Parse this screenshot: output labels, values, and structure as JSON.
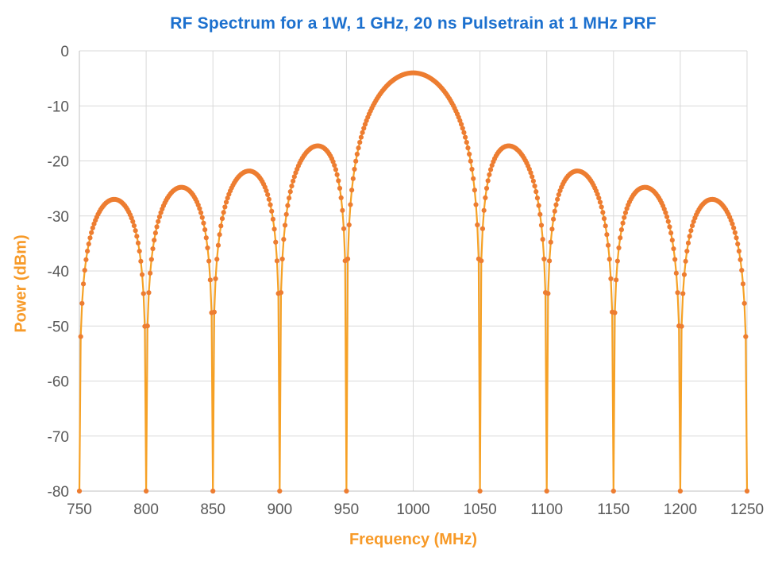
{
  "chart_data": {
    "type": "line",
    "title": "RF Spectrum for a 1W, 1 GHz, 20 ns Pulsetrain at 1 MHz PRF",
    "xlabel": "Frequency (MHz)",
    "ylabel": "Power (dBm)",
    "xlim": [
      750,
      1250
    ],
    "ylim": [
      -80,
      0
    ],
    "x_ticks": [
      750,
      800,
      850,
      900,
      950,
      1000,
      1050,
      1100,
      1150,
      1200,
      1250
    ],
    "y_ticks": [
      0,
      -10,
      -20,
      -30,
      -40,
      -50,
      -60,
      -70,
      -80
    ],
    "grid": "on",
    "legend": "none",
    "marker": "circle",
    "series_generator": {
      "description": "sinc-squared pulsed-RF spectrum envelope, spectral lines every 1 MHz (PRF), nulls every 50 MHz (1/20ns), values clipped at -80 dBm",
      "x_start_mhz": 750,
      "x_end_mhz": 1250,
      "x_step_mhz": 1,
      "carrier_mhz": 1000,
      "null_spacing_mhz": 50,
      "peak_dbm": -4,
      "clip_floor_dbm": -80
    },
    "key_points": {
      "main_lobe_peak": {
        "x": 1000,
        "y": -4
      },
      "sidelobe_peaks_dbm": [
        -17.3,
        -21.8,
        -24.8,
        -27.0
      ],
      "null_frequencies_mhz": [
        750,
        800,
        850,
        900,
        950,
        1050,
        1100,
        1150,
        1200,
        1250
      ],
      "edge_point_dbm_at_751_and_1249": -51.9
    },
    "colors": {
      "series_marker": "#ED7D31",
      "series_line": "#F6A125",
      "gridline": "#D9D9D9",
      "axis_line": "#C0C0C0",
      "tick_text": "#595959",
      "title_text": "#1C70CE",
      "axis_title_text": "#F79A28"
    }
  }
}
